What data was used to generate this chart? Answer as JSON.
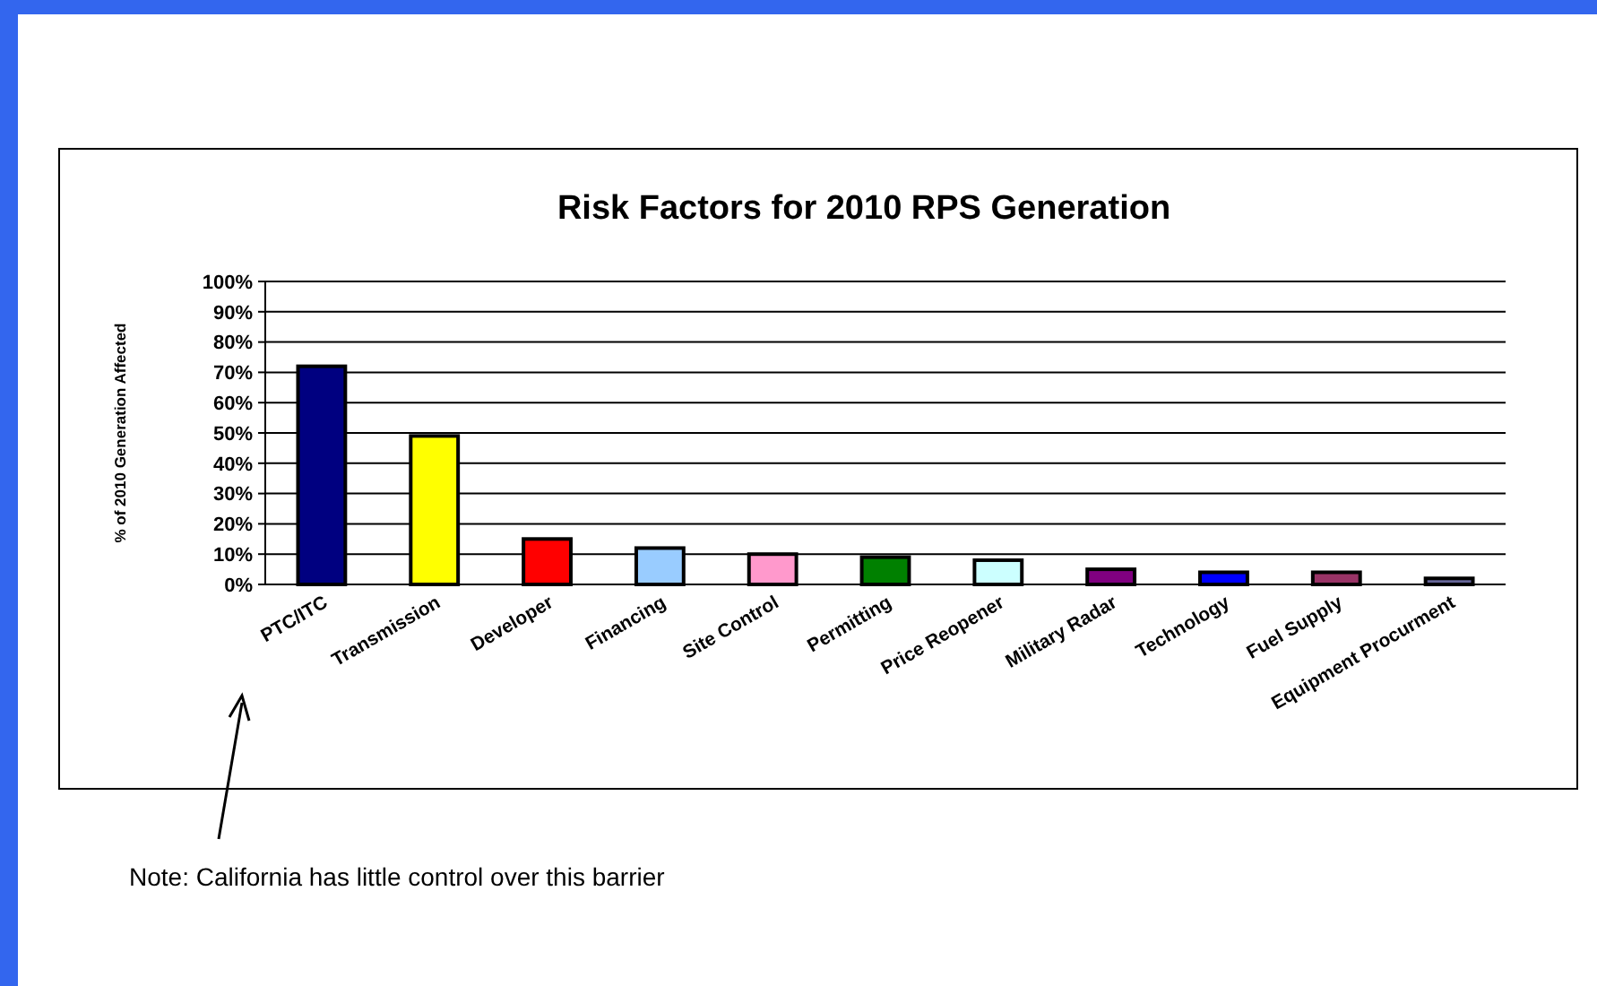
{
  "chart_data": {
    "type": "bar",
    "title": "Risk Factors for 2010 RPS Generation",
    "ylabel": "% of 2010 Generation Affected",
    "categories": [
      "PTC/ITC",
      "Transmission",
      "Developer",
      "Financing",
      "Site Control",
      "Permitting",
      "Price Reopener",
      "Military Radar",
      "Technology",
      "Fuel Supply",
      "Equipment Procurment"
    ],
    "values": [
      72,
      49,
      15,
      12,
      10,
      9,
      8,
      5,
      4,
      4,
      2
    ],
    "colors": [
      "#000080",
      "#ffff00",
      "#ff0000",
      "#99ccff",
      "#ff99cc",
      "#008000",
      "#ccffff",
      "#800080",
      "#0000ff",
      "#993366",
      "#666699"
    ],
    "ylim": [
      0,
      100
    ],
    "yticks": [
      {
        "value": 0,
        "label": "0%"
      },
      {
        "value": 10,
        "label": "10%"
      },
      {
        "value": 20,
        "label": "20%"
      },
      {
        "value": 30,
        "label": "30%"
      },
      {
        "value": 40,
        "label": "40%"
      },
      {
        "value": 50,
        "label": "50%"
      },
      {
        "value": 60,
        "label": "60%"
      },
      {
        "value": 70,
        "label": "70%"
      },
      {
        "value": 80,
        "label": "80%"
      },
      {
        "value": 90,
        "label": "90%"
      },
      {
        "value": 100,
        "label": "100%"
      }
    ],
    "grid": "y",
    "annotations": [
      "Note:  California has little control over this barrier"
    ]
  }
}
